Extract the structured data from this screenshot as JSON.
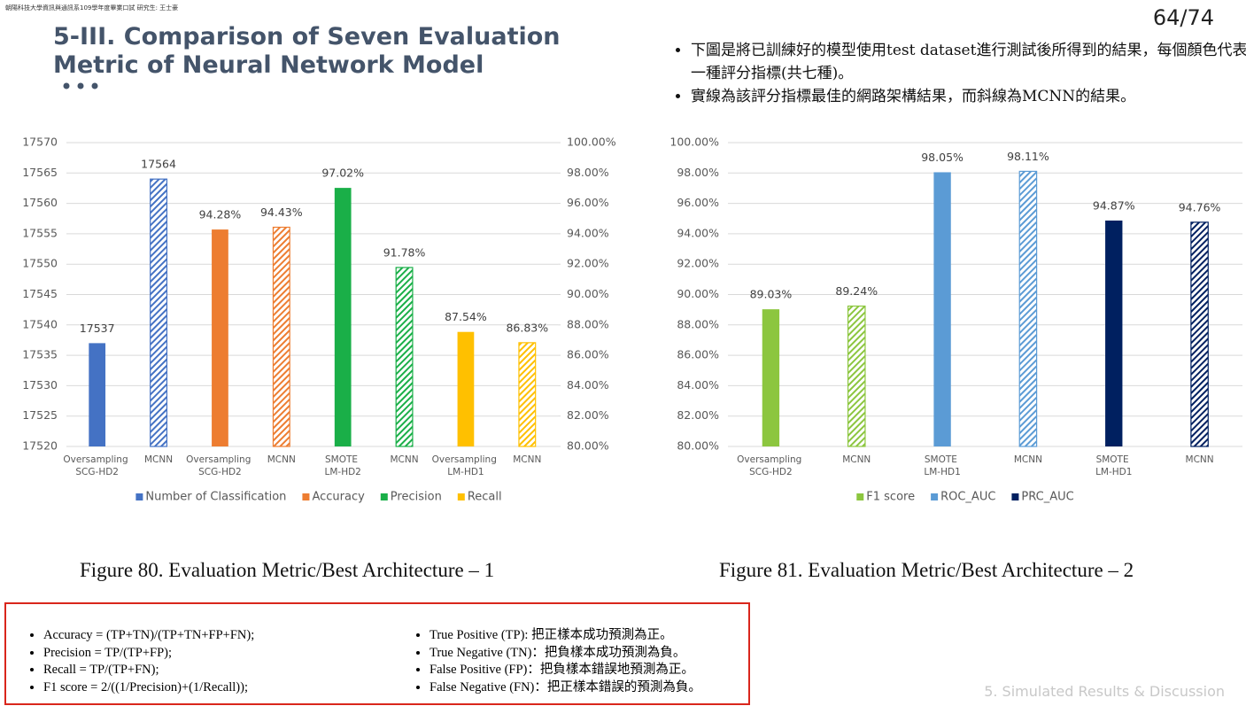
{
  "header": {
    "institution": "朝陽科技大學資訊與通訊系109學年度畢業口試 研究生: 王士豪",
    "page": "64/74",
    "title": "5-III. Comparison of Seven Evaluation Metric of Neural Network Model",
    "bullets": [
      "下圖是將已訓練好的模型使用test dataset進行測試後所得到的結果，每個顏色代表一種評分指標(共七種)。",
      "實線為該評分指標最佳的網路架構結果，而斜線為MCNN的結果。"
    ]
  },
  "chart_data": [
    {
      "type": "bar",
      "caption": "Figure 80. Evaluation Metric/Best Architecture – 1",
      "categories": [
        "Oversampling SCG-HD2",
        "MCNN",
        "Oversampling SCG-HD2",
        "MCNN",
        "SMOTE LM-HD2",
        "MCNN",
        "Oversampling LM-HD1",
        "MCNN"
      ],
      "hatched": [
        false,
        true,
        false,
        true,
        false,
        true,
        false,
        true
      ],
      "series": [
        {
          "name": "Number of Classification",
          "color": "#4472c4",
          "axis": "y",
          "values": [
            17537,
            17564,
            null,
            null,
            null,
            null,
            null,
            null
          ]
        },
        {
          "name": "Accuracy",
          "color": "#ed7d31",
          "axis": "y2",
          "values": [
            null,
            null,
            94.28,
            94.43,
            null,
            null,
            null,
            null
          ],
          "value_labels": [
            null,
            null,
            "94.28%",
            "94.43%",
            null,
            null,
            null,
            null
          ]
        },
        {
          "name": "Precision",
          "color": "#1aaf48",
          "axis": "y2",
          "values": [
            null,
            null,
            null,
            null,
            97.02,
            91.78,
            null,
            null
          ],
          "value_labels": [
            null,
            null,
            null,
            null,
            "97.02%",
            "91.78%",
            null,
            null
          ]
        },
        {
          "name": "Recall",
          "color": "#ffc000",
          "axis": "y2",
          "values": [
            null,
            null,
            null,
            null,
            null,
            null,
            87.54,
            86.83
          ],
          "value_labels": [
            null,
            null,
            null,
            null,
            null,
            null,
            "87.54%",
            "86.83%"
          ]
        }
      ],
      "ylim": [
        17520,
        17570
      ],
      "yticks": [
        17520,
        17525,
        17530,
        17535,
        17540,
        17545,
        17550,
        17555,
        17560,
        17565,
        17570
      ],
      "y2lim": [
        80,
        100
      ],
      "y2ticks": [
        {
          "value": 80,
          "label": "80.00%"
        },
        {
          "value": 82,
          "label": "82.00%"
        },
        {
          "value": 84,
          "label": "84.00%"
        },
        {
          "value": 86,
          "label": "86.00%"
        },
        {
          "value": 88,
          "label": "88.00%"
        },
        {
          "value": 90,
          "label": "90.00%"
        },
        {
          "value": 92,
          "label": "92.00%"
        },
        {
          "value": 94,
          "label": "94.00%"
        },
        {
          "value": 96,
          "label": "96.00%"
        },
        {
          "value": 98,
          "label": "98.00%"
        },
        {
          "value": 100,
          "label": "100.00%"
        }
      ],
      "grid": true,
      "legend": "bottom"
    },
    {
      "type": "bar",
      "caption": "Figure 81. Evaluation Metric/Best Architecture – 2",
      "categories": [
        "Oversampling SCG-HD2",
        "MCNN",
        "SMOTE LM-HD1",
        "MCNN",
        "SMOTE LM-HD1",
        "MCNN"
      ],
      "hatched": [
        false,
        true,
        false,
        true,
        false,
        true
      ],
      "series": [
        {
          "name": "F1 score",
          "color": "#8cc63f",
          "values": [
            89.03,
            89.24,
            null,
            null,
            null,
            null
          ],
          "value_labels": [
            "89.03%",
            "89.24%",
            null,
            null,
            null,
            null
          ]
        },
        {
          "name": "ROC_AUC",
          "color": "#5b9bd5",
          "values": [
            null,
            null,
            98.05,
            98.11,
            null,
            null
          ],
          "value_labels": [
            null,
            null,
            "98.05%",
            "98.11%",
            null,
            null
          ]
        },
        {
          "name": "PRC_AUC",
          "color": "#002060",
          "values": [
            null,
            null,
            null,
            null,
            94.87,
            94.76
          ],
          "value_labels": [
            null,
            null,
            null,
            null,
            "94.87%",
            "94.76%"
          ]
        }
      ],
      "ylim": [
        80,
        100
      ],
      "yticks": [
        {
          "value": 80,
          "label": "80.00%"
        },
        {
          "value": 82,
          "label": "82.00%"
        },
        {
          "value": 84,
          "label": "84.00%"
        },
        {
          "value": 86,
          "label": "86.00%"
        },
        {
          "value": 88,
          "label": "88.00%"
        },
        {
          "value": 90,
          "label": "90.00%"
        },
        {
          "value": 92,
          "label": "92.00%"
        },
        {
          "value": 94,
          "label": "94.00%"
        },
        {
          "value": 96,
          "label": "96.00%"
        },
        {
          "value": 98,
          "label": "98.00%"
        },
        {
          "value": 100,
          "label": "100.00%"
        }
      ],
      "grid": true,
      "legend": "bottom"
    }
  ],
  "definitions": {
    "formulas": [
      "Accuracy = (TP+TN)/(TP+TN+FP+FN);",
      "Precision = TP/(TP+FP);",
      "Recall = TP/(TP+FN);",
      "F1 score = 2/((1/Precision)+(1/Recall));"
    ],
    "terms": [
      "True Positive (TP): 把正樣本成功預測為正。",
      "True Negative (TN)：把負樣本成功預測為負。",
      "False Positive (FP)：把負樣本錯誤地預測為正。",
      "False Negative (FN)：把正樣本錯誤的預測為負。"
    ]
  },
  "footer": "5. Simulated Results & Discussion"
}
